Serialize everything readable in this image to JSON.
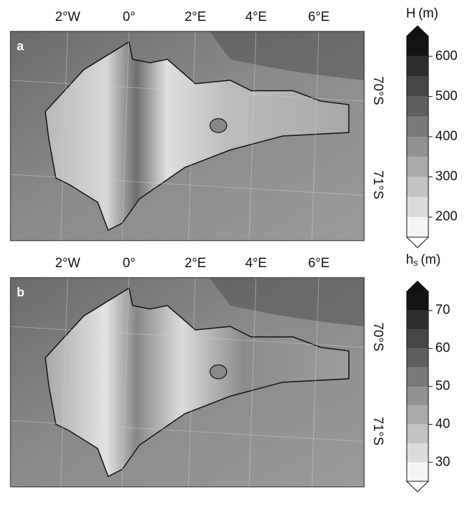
{
  "panels": [
    {
      "label": "a",
      "lon_labels": [
        "2°W",
        "0°",
        "2°E",
        "4°E",
        "6°E"
      ],
      "lat_labels": [
        "70°S",
        "71°S"
      ],
      "colorbar": {
        "symbol": "H",
        "unit": "(m)",
        "range": [
          150,
          650
        ],
        "ticks": [
          200,
          300,
          400,
          500,
          600
        ]
      }
    },
    {
      "label": "b",
      "lon_labels": [
        "2°W",
        "0°",
        "2°E",
        "4°E",
        "6°E"
      ],
      "lat_labels": [
        "70°S",
        "71°S"
      ],
      "colorbar": {
        "symbol": "h",
        "subscript": "s",
        "unit": "(m)",
        "range": [
          25,
          75
        ],
        "ticks": [
          30,
          40,
          50,
          60,
          70
        ]
      }
    }
  ]
}
